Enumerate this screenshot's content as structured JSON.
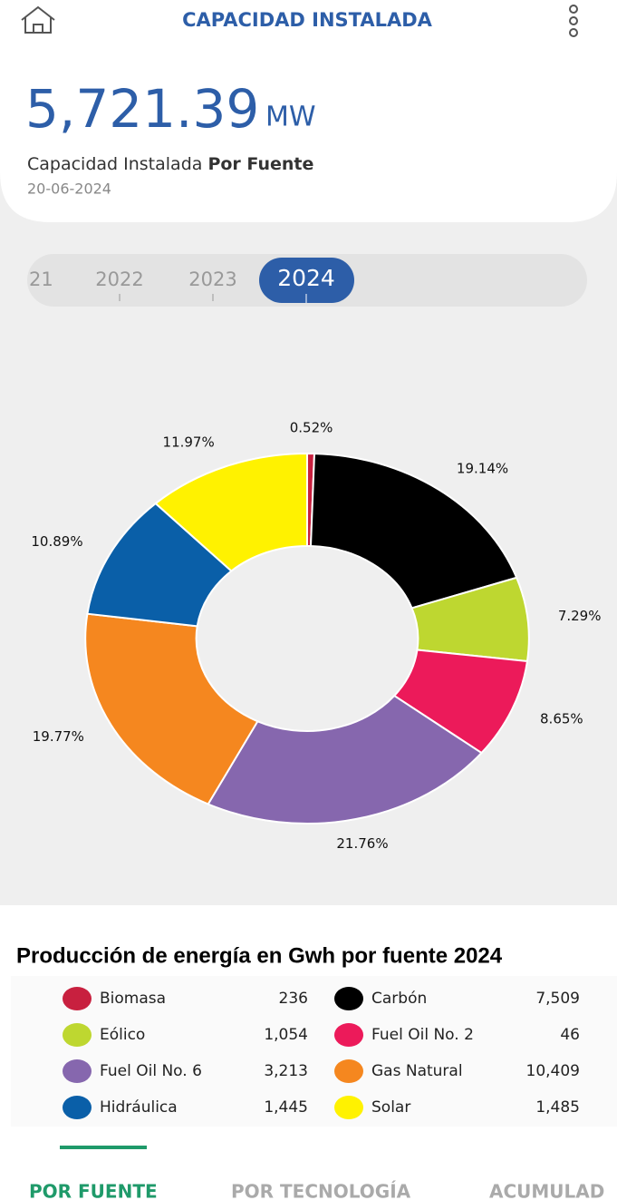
{
  "header": {
    "title": "CAPACIDAD INSTALADA"
  },
  "summary": {
    "value": "5,721.39",
    "unit": "MW",
    "label": "Capacidad Instalada",
    "label_bold": "Por Fuente",
    "date": "20-06-2024"
  },
  "years": [
    "21",
    "2022",
    "2023",
    "2024"
  ],
  "chart_data": {
    "type": "pie",
    "donut": true,
    "categories": [
      "Biomasa",
      "Carbón",
      "Eólico",
      "Fuel Oil No. 2",
      "Fuel Oil No. 6",
      "Gas Natural",
      "Hidráulica",
      "Solar"
    ],
    "colors": [
      "#c8203f",
      "#000000",
      "#bed730",
      "#ec1a5a",
      "#8667ae",
      "#f5871f",
      "#0a5fa8",
      "#fff200"
    ],
    "values": [
      0.52,
      19.14,
      7.29,
      8.65,
      21.76,
      19.77,
      10.89,
      11.97
    ],
    "value_labels": [
      "0.52%",
      "19.14%",
      "7.29%",
      "8.65%",
      "21.76%",
      "19.77%",
      "10.89%",
      "11.97%"
    ]
  },
  "production": {
    "title": "Producción de energía en Gwh por fuente 2024",
    "values": [
      "236",
      "7,509",
      "1,054",
      "46",
      "3,213",
      "10,409",
      "1,445",
      "1,485"
    ]
  },
  "tabs": [
    "POR FUENTE",
    "POR TECNOLOGÍA",
    "ACUMULAD"
  ]
}
